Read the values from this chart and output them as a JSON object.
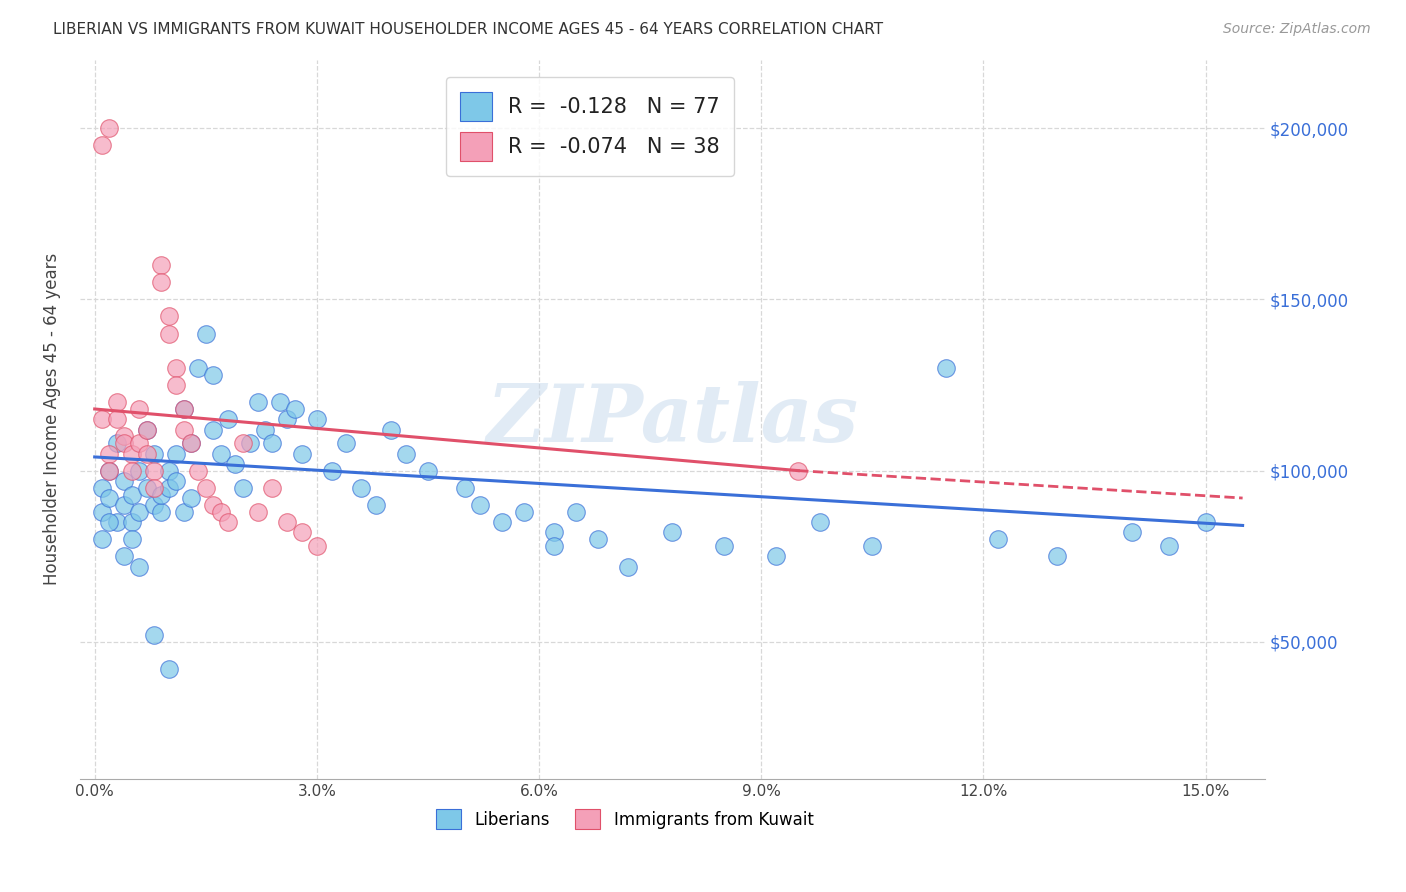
{
  "title": "LIBERIAN VS IMMIGRANTS FROM KUWAIT HOUSEHOLDER INCOME AGES 45 - 64 YEARS CORRELATION CHART",
  "source": "Source: ZipAtlas.com",
  "xlabel_ticks": [
    "0.0%",
    "3.0%",
    "6.0%",
    "9.0%",
    "12.0%",
    "15.0%"
  ],
  "xlabel_vals": [
    0.0,
    0.03,
    0.06,
    0.09,
    0.12,
    0.15
  ],
  "ylabel": "Householder Income Ages 45 - 64 years",
  "ylabel_ticks": [
    "$50,000",
    "$100,000",
    "$150,000",
    "$200,000"
  ],
  "ylabel_vals": [
    50000,
    100000,
    150000,
    200000
  ],
  "ylim": [
    10000,
    220000
  ],
  "xlim": [
    -0.002,
    0.158
  ],
  "color_blue": "#7ec8e8",
  "color_pink": "#f4a0b8",
  "trendline_blue": "#3a6fd8",
  "trendline_pink": "#e0506a",
  "legend_R_blue": "-0.128",
  "legend_N_blue": "77",
  "legend_R_pink": "-0.074",
  "legend_N_pink": "38",
  "blue_x": [
    0.001,
    0.001,
    0.002,
    0.002,
    0.003,
    0.003,
    0.004,
    0.004,
    0.005,
    0.005,
    0.006,
    0.006,
    0.007,
    0.007,
    0.008,
    0.008,
    0.009,
    0.009,
    0.01,
    0.01,
    0.011,
    0.011,
    0.012,
    0.012,
    0.013,
    0.013,
    0.014,
    0.015,
    0.016,
    0.016,
    0.017,
    0.018,
    0.019,
    0.02,
    0.021,
    0.022,
    0.023,
    0.024,
    0.025,
    0.026,
    0.027,
    0.028,
    0.03,
    0.032,
    0.034,
    0.036,
    0.038,
    0.04,
    0.042,
    0.045,
    0.05,
    0.052,
    0.055,
    0.058,
    0.062,
    0.062,
    0.065,
    0.068,
    0.072,
    0.078,
    0.085,
    0.092,
    0.098,
    0.105,
    0.115,
    0.122,
    0.13,
    0.14,
    0.145,
    0.15,
    0.001,
    0.002,
    0.004,
    0.005,
    0.006,
    0.008,
    0.01
  ],
  "blue_y": [
    95000,
    88000,
    92000,
    100000,
    85000,
    108000,
    97000,
    90000,
    93000,
    85000,
    100000,
    88000,
    95000,
    112000,
    90000,
    105000,
    88000,
    93000,
    100000,
    95000,
    105000,
    97000,
    88000,
    118000,
    92000,
    108000,
    130000,
    140000,
    128000,
    112000,
    105000,
    115000,
    102000,
    95000,
    108000,
    120000,
    112000,
    108000,
    120000,
    115000,
    118000,
    105000,
    115000,
    100000,
    108000,
    95000,
    90000,
    112000,
    105000,
    100000,
    95000,
    90000,
    85000,
    88000,
    82000,
    78000,
    88000,
    80000,
    72000,
    82000,
    78000,
    75000,
    85000,
    78000,
    130000,
    80000,
    75000,
    82000,
    78000,
    85000,
    80000,
    85000,
    75000,
    80000,
    72000,
    52000,
    42000
  ],
  "pink_x": [
    0.001,
    0.001,
    0.002,
    0.002,
    0.003,
    0.003,
    0.004,
    0.004,
    0.005,
    0.005,
    0.006,
    0.006,
    0.007,
    0.007,
    0.008,
    0.008,
    0.009,
    0.009,
    0.01,
    0.01,
    0.011,
    0.011,
    0.012,
    0.012,
    0.013,
    0.014,
    0.015,
    0.016,
    0.017,
    0.018,
    0.02,
    0.022,
    0.024,
    0.026,
    0.028,
    0.03,
    0.095,
    0.002
  ],
  "pink_y": [
    195000,
    115000,
    105000,
    100000,
    120000,
    115000,
    110000,
    108000,
    105000,
    100000,
    118000,
    108000,
    112000,
    105000,
    100000,
    95000,
    160000,
    155000,
    145000,
    140000,
    130000,
    125000,
    118000,
    112000,
    108000,
    100000,
    95000,
    90000,
    88000,
    85000,
    108000,
    88000,
    95000,
    85000,
    82000,
    78000,
    100000,
    200000
  ],
  "watermark": "ZIPatlas",
  "background_color": "#ffffff",
  "grid_color": "#d8d8d8",
  "blue_trend_x0": 0.0,
  "blue_trend_y0": 104000,
  "blue_trend_x1": 0.155,
  "blue_trend_y1": 84000,
  "pink_trend_solid_x0": 0.0,
  "pink_trend_solid_y0": 118000,
  "pink_trend_solid_x1": 0.095,
  "pink_trend_solid_y1": 100000,
  "pink_trend_dash_x0": 0.095,
  "pink_trend_dash_y0": 100000,
  "pink_trend_dash_x1": 0.155,
  "pink_trend_dash_y1": 92000
}
